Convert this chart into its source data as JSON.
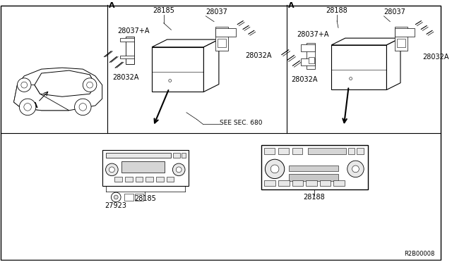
{
  "bg_color": "#ffffff",
  "line_color": "#000000",
  "diagram_ref": "R2B00008",
  "labels": {
    "car_label": "A",
    "left_A": "A",
    "right_A": "A",
    "part_28185_top": "28185",
    "part_28037_left": "28037",
    "part_28037A_left": "28037+A",
    "part_28032A_left1": "28032A",
    "part_28032A_left2": "28032A",
    "see_sec": "SEE SEC. 680",
    "part_28188_top": "28188",
    "part_28037_right": "28037",
    "part_28037A_right": "28037+A",
    "part_28032A_right1": "28032A",
    "part_28032A_right2": "28032A",
    "part_27923": "27923",
    "part_28185_bottom": "28185",
    "part_28188_bottom": "28188"
  }
}
